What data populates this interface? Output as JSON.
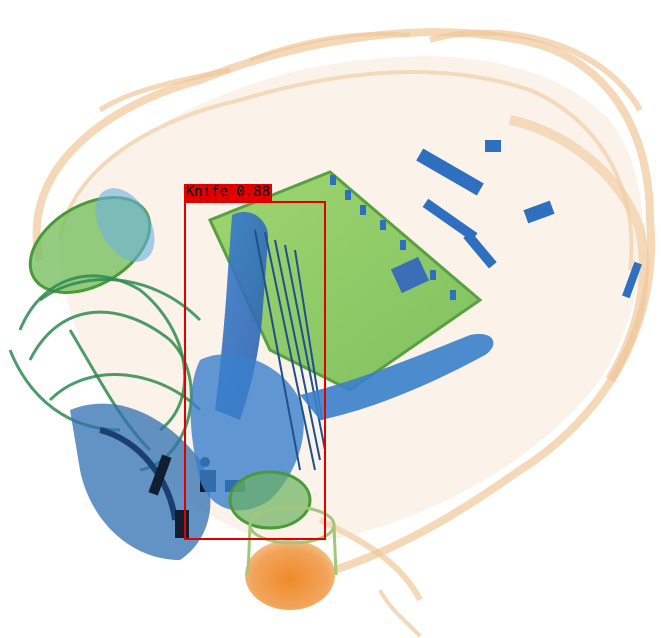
{
  "detection": {
    "label": "Knife 0.88",
    "class": "Knife",
    "confidence": 0.88,
    "box_color": "#e00000"
  },
  "palette": {
    "organic": "#f0c89a",
    "metal": "#2f6fc0",
    "mixed": "#7ec850",
    "dense": "#f08a2a"
  }
}
